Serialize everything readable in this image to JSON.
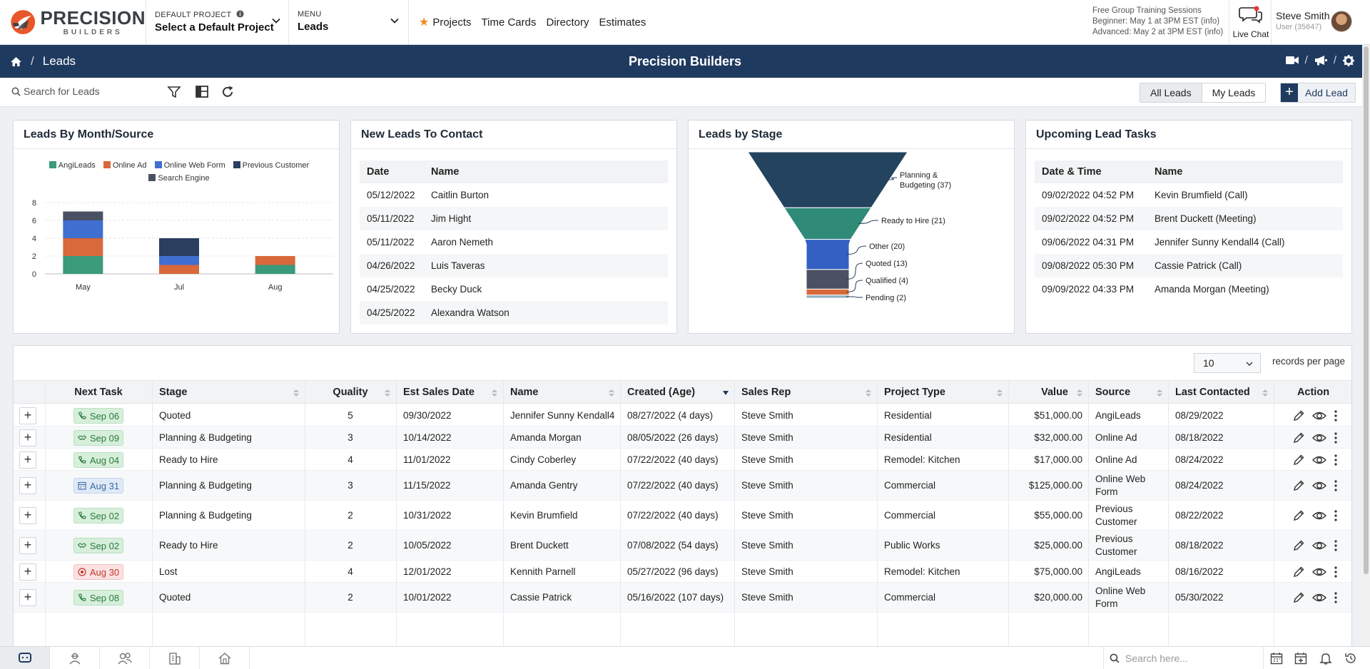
{
  "brand": {
    "name": "PRECISION",
    "sub": "BUILDERS"
  },
  "header": {
    "default_project_caption": "DEFAULT PROJECT",
    "default_project_value": "Select a Default Project",
    "menu_caption": "MENU",
    "menu_value": "Leads",
    "nav": [
      "Projects",
      "Time Cards",
      "Directory",
      "Estimates"
    ],
    "training": {
      "line1": "Free Group Training Sessions",
      "line2": "Beginner: May 1 at 3PM EST (info)",
      "line3": "Advanced: May 2 at 3PM EST (info)"
    },
    "live_chat": "Live Chat",
    "user_name": "Steve Smith",
    "user_sub": "User (35647)"
  },
  "strip": {
    "crumb": "Leads",
    "title": "Precision Builders"
  },
  "toolbar": {
    "search_placeholder": "Search for Leads",
    "all_leads": "All Leads",
    "my_leads": "My Leads",
    "add_lead": "Add Lead"
  },
  "widgets": {
    "by_month": {
      "title": "Leads By Month/Source",
      "legend": [
        {
          "name": "AngiLeads",
          "color": "#3a9a7a"
        },
        {
          "name": "Online Ad",
          "color": "#d9683a"
        },
        {
          "name": "Online Web Form",
          "color": "#3f6fd1"
        },
        {
          "name": "Previous Customer",
          "color": "#2c3e60"
        },
        {
          "name": "Search Engine",
          "color": "#4a5163"
        }
      ]
    },
    "new_leads": {
      "title": "New Leads To Contact",
      "headers": [
        "Date",
        "Name"
      ],
      "rows": [
        [
          "05/12/2022",
          "Caitlin Burton"
        ],
        [
          "05/11/2022",
          "Jim Hight"
        ],
        [
          "05/11/2022",
          "Aaron Nemeth"
        ],
        [
          "04/26/2022",
          "Luis Taveras"
        ],
        [
          "04/25/2022",
          "Becky Duck"
        ],
        [
          "04/25/2022",
          "Alexandra Watson"
        ]
      ]
    },
    "by_stage": {
      "title": "Leads by Stage"
    },
    "upcoming": {
      "title": "Upcoming Lead Tasks",
      "headers": [
        "Date & Time",
        "Name"
      ],
      "rows": [
        [
          "09/02/2022 04:52 PM",
          "Kevin Brumfield (Call)"
        ],
        [
          "09/02/2022 04:52 PM",
          "Brent Duckett (Meeting)"
        ],
        [
          "09/06/2022 04:31 PM",
          "Jennifer Sunny Kendall4 (Call)"
        ],
        [
          "09/08/2022 05:30 PM",
          "Cassie Patrick (Call)"
        ],
        [
          "09/09/2022 04:33 PM",
          "Amanda Morgan (Meeting)"
        ]
      ]
    }
  },
  "chart_data": [
    {
      "type": "bar",
      "stacked": true,
      "title": "Leads By Month/Source",
      "categories": [
        "May",
        "Jul",
        "Aug"
      ],
      "series": [
        {
          "name": "AngiLeads",
          "values": [
            2,
            0,
            1
          ]
        },
        {
          "name": "Online Ad",
          "values": [
            2,
            1,
            1
          ]
        },
        {
          "name": "Online Web Form",
          "values": [
            2,
            1,
            0
          ]
        },
        {
          "name": "Previous Customer",
          "values": [
            0,
            2,
            0
          ]
        },
        {
          "name": "Search Engine",
          "values": [
            1,
            0,
            0
          ]
        }
      ],
      "yticks": [
        "0",
        "2",
        "4",
        "6",
        "8"
      ],
      "ylim": [
        0,
        8
      ],
      "xlabel": "",
      "ylabel": ""
    },
    {
      "type": "funnel",
      "title": "Leads by Stage",
      "stages": [
        {
          "label": "Planning & Budgeting (37)",
          "value": 37,
          "color": "#23435e"
        },
        {
          "label": "Ready to Hire (21)",
          "value": 21,
          "color": "#2f8a78"
        },
        {
          "label": "Other (20)",
          "value": 20,
          "color": "#3360c2"
        },
        {
          "label": "Quoted (13)",
          "value": 13,
          "color": "#4a5163"
        },
        {
          "label": "Qualified (4)",
          "value": 4,
          "color": "#d9683a"
        },
        {
          "label": "Pending (2)",
          "value": 2,
          "color": "#8fb2c2"
        }
      ]
    }
  ],
  "table": {
    "records_per_page_value": "10",
    "records_per_page_label": "records per page",
    "headers": [
      "Next Task",
      "Stage",
      "Quality",
      "Est Sales Date",
      "Name",
      "Created (Age)",
      "Sales Rep",
      "Project Type",
      "Value",
      "Source",
      "Last Contacted",
      "Action"
    ],
    "rows": [
      {
        "task": "Sep 06",
        "task_kind": "green",
        "task_icon": "phone",
        "stage": "Quoted",
        "quality": "5",
        "est": "09/30/2022",
        "name": "Jennifer Sunny Kendall4",
        "created": "08/27/2022 (4 days)",
        "rep": "Steve Smith",
        "ptype": "Residential",
        "value": "$51,000.00",
        "source": [
          "AngiLeads"
        ],
        "last": "08/29/2022"
      },
      {
        "task": "Sep 09",
        "task_kind": "green",
        "task_icon": "meeting",
        "stage": "Planning & Budgeting",
        "quality": "3",
        "est": "10/14/2022",
        "name": "Amanda Morgan",
        "created": "08/05/2022 (26 days)",
        "rep": "Steve Smith",
        "ptype": "Residential",
        "value": "$32,000.00",
        "source": [
          "Online Ad"
        ],
        "last": "08/18/2022"
      },
      {
        "task": "Aug 04",
        "task_kind": "green",
        "task_icon": "phone",
        "stage": "Ready to Hire",
        "quality": "4",
        "est": "11/01/2022",
        "name": "Cindy Coberley",
        "created": "07/22/2022 (40 days)",
        "rep": "Steve Smith",
        "ptype": "Remodel: Kitchen",
        "value": "$17,000.00",
        "source": [
          "Online Ad"
        ],
        "last": "08/24/2022"
      },
      {
        "task": "Aug 31",
        "task_kind": "blue",
        "task_icon": "calendar",
        "stage": "Planning & Budgeting",
        "quality": "3",
        "est": "11/15/2022",
        "name": "Amanda Gentry",
        "created": "07/22/2022 (40 days)",
        "rep": "Steve Smith",
        "ptype": "Commercial",
        "value": "$125,000.00",
        "source": [
          "Online Web",
          "Form"
        ],
        "last": "08/24/2022"
      },
      {
        "task": "Sep 02",
        "task_kind": "green",
        "task_icon": "phone",
        "stage": "Planning & Budgeting",
        "quality": "2",
        "est": "10/31/2022",
        "name": "Kevin Brumfield",
        "created": "07/22/2022 (40 days)",
        "rep": "Steve Smith",
        "ptype": "Commercial",
        "value": "$55,000.00",
        "source": [
          "Previous",
          "Customer"
        ],
        "last": "08/22/2022"
      },
      {
        "task": "Sep 02",
        "task_kind": "green",
        "task_icon": "meeting",
        "stage": "Ready to Hire",
        "quality": "2",
        "est": "10/05/2022",
        "name": "Brent Duckett",
        "created": "07/08/2022 (54 days)",
        "rep": "Steve Smith",
        "ptype": "Public Works",
        "value": "$25,000.00",
        "source": [
          "Previous",
          "Customer"
        ],
        "last": "08/18/2022"
      },
      {
        "task": "Aug 30",
        "task_kind": "red",
        "task_icon": "target",
        "stage": "Lost",
        "quality": "4",
        "est": "12/01/2022",
        "name": "Kennith Parnell",
        "created": "05/27/2022 (96 days)",
        "rep": "Steve Smith",
        "ptype": "Remodel: Kitchen",
        "value": "$75,000.00",
        "source": [
          "AngiLeads"
        ],
        "last": "08/16/2022"
      },
      {
        "task": "Sep 08",
        "task_kind": "green",
        "task_icon": "phone",
        "stage": "Quoted",
        "quality": "2",
        "est": "10/01/2022",
        "name": "Cassie Patrick",
        "created": "05/16/2022 (107 days)",
        "rep": "Steve Smith",
        "ptype": "Commercial",
        "value": "$20,000.00",
        "source": [
          "Online Web",
          "Form"
        ],
        "last": "05/30/2022"
      }
    ]
  },
  "bottom": {
    "search_placeholder": "Search here..."
  }
}
